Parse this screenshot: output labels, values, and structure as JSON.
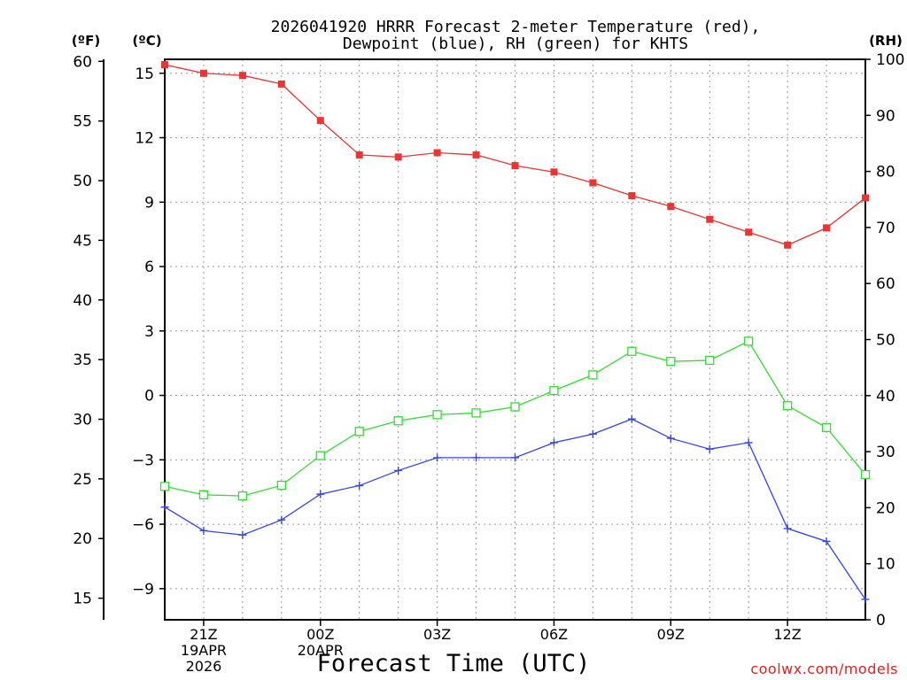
{
  "chart_data": {
    "type": "line",
    "title_line1": "2026041920 HRRR Forecast 2-meter Temperature (red),",
    "title_line2": "Dewpoint (blue), RH (green) for KHTS",
    "unit_f": "(ºF)",
    "unit_c": "(ºC)",
    "unit_rh": "(RH)",
    "xlabel": "Forecast Time (UTC)",
    "credit": "coolwx.com/models",
    "x_hours": [
      0,
      1,
      2,
      3,
      4,
      5,
      6,
      7,
      8,
      9,
      10,
      11,
      12,
      13,
      14,
      15,
      16,
      17,
      18
    ],
    "x_ticks": [
      {
        "hour": 1,
        "lines": [
          "21Z",
          "19APR",
          "2026"
        ]
      },
      {
        "hour": 4,
        "lines": [
          "00Z",
          "20APR"
        ]
      },
      {
        "hour": 7,
        "lines": [
          "03Z"
        ]
      },
      {
        "hour": 10,
        "lines": [
          "06Z"
        ]
      },
      {
        "hour": 13,
        "lines": [
          "09Z"
        ]
      },
      {
        "hour": 16,
        "lines": [
          "12Z"
        ]
      }
    ],
    "c_ticks": [
      15,
      12,
      9,
      6,
      3,
      0,
      -3,
      -6,
      -9
    ],
    "c_tick_labels": [
      "15",
      "12",
      "9",
      "6",
      "3",
      "0",
      "−3",
      "−6",
      "−9"
    ],
    "c_range": [
      -10.45,
      15.65
    ],
    "f_ticks": [
      60,
      55,
      50,
      45,
      40,
      35,
      30,
      25,
      20,
      15
    ],
    "rh_ticks": [
      100,
      90,
      80,
      70,
      60,
      50,
      40,
      30,
      20,
      10,
      0
    ],
    "rh_range": [
      0,
      100
    ],
    "series": [
      {
        "name": "2-meter Temperature",
        "units": "C",
        "color": "#ee3333",
        "marker": "filled-square",
        "values": [
          15.4,
          15.0,
          14.9,
          14.5,
          12.8,
          11.2,
          11.1,
          11.3,
          11.2,
          10.7,
          10.4,
          9.9,
          9.3,
          8.8,
          8.2,
          7.6,
          7.0,
          7.8,
          9.2
        ]
      },
      {
        "name": "Dewpoint",
        "units": "C",
        "color": "#3344ee",
        "marker": "plus",
        "values": [
          -5.2,
          -6.3,
          -6.5,
          -5.8,
          -4.6,
          -4.2,
          -3.5,
          -2.9,
          -2.9,
          -2.9,
          -2.2,
          -1.8,
          -1.1,
          -2.0,
          -2.5,
          -2.2,
          -6.2,
          -6.8,
          -9.5
        ]
      },
      {
        "name": "RH",
        "units": "%",
        "color": "#33dd33",
        "marker": "open-square",
        "values": [
          23.8,
          22.3,
          22.1,
          24.0,
          29.3,
          33.6,
          35.5,
          36.6,
          36.9,
          38.0,
          40.9,
          43.7,
          47.9,
          46.1,
          46.3,
          49.7,
          38.2,
          34.3,
          25.9
        ]
      }
    ]
  }
}
